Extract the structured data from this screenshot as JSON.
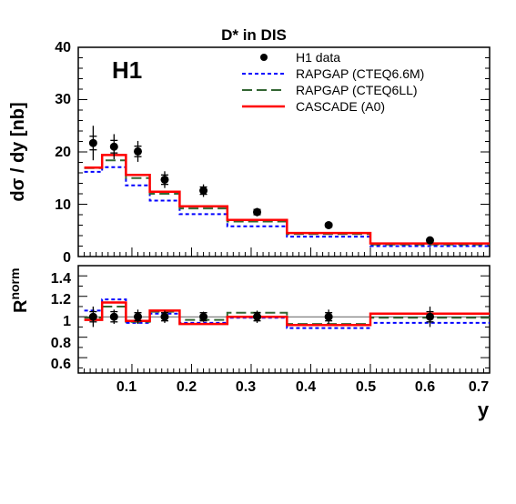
{
  "chart_data": [
    {
      "type": "line",
      "title": "D* in DIS",
      "ylabel": "dσ / dy [nb]",
      "xlabel": "y",
      "logo": "H1",
      "xlim": [
        0.01,
        0.7
      ],
      "ylim": [
        0,
        40
      ],
      "xticks": [
        "0.1",
        "0.2",
        "0.3",
        "0.4",
        "0.5",
        "0.6",
        "0.7"
      ],
      "yticks": [
        "0",
        "10",
        "20",
        "30",
        "40"
      ],
      "grid": false,
      "legend_position": "top-right",
      "bin_edges": [
        0.02,
        0.05,
        0.09,
        0.13,
        0.18,
        0.26,
        0.36,
        0.5,
        0.7
      ],
      "series": [
        {
          "name": "H1 data",
          "style": "markers",
          "color": "#000000",
          "x": [
            0.035,
            0.07,
            0.11,
            0.155,
            0.22,
            0.31,
            0.43,
            0.6
          ],
          "y": [
            21.7,
            21.0,
            20.1,
            14.7,
            12.6,
            8.5,
            6.0,
            3.1
          ],
          "err_stat": [
            1.3,
            1.2,
            1.0,
            0.9,
            0.7,
            0.5,
            0.35,
            0.25
          ],
          "err_tot": [
            3.3,
            2.4,
            2.0,
            1.6,
            1.2,
            0.8,
            0.55,
            0.5
          ]
        },
        {
          "name": "RAPGAP (CTEQ6.6M)",
          "style": "dotted",
          "color": "#0000ff",
          "values": [
            16.2,
            17.1,
            13.6,
            10.7,
            8.1,
            5.8,
            3.8,
            2.0
          ]
        },
        {
          "name": "RAPGAP (CTEQ6LL)",
          "style": "dashed",
          "color": "#336633",
          "values": [
            16.9,
            18.4,
            15.0,
            12.0,
            9.2,
            6.7,
            4.3,
            2.3
          ]
        },
        {
          "name": "CASCADE (A0)",
          "style": "solid",
          "color": "#ff0000",
          "values": [
            17.0,
            19.4,
            15.6,
            12.4,
            9.6,
            7.0,
            4.5,
            2.5
          ]
        }
      ]
    },
    {
      "type": "line",
      "ylabel": "R",
      "ylabel_sup": "norm",
      "xlabel": "y",
      "xlim": [
        0.01,
        0.7
      ],
      "ylim": [
        0.45,
        1.5
      ],
      "yticks": [
        "0.6",
        "0.8",
        "1",
        "1.2",
        "1.4"
      ],
      "xticks": [
        "0.1",
        "0.2",
        "0.3",
        "0.4",
        "0.5",
        "0.6",
        "0.7"
      ],
      "grid": false,
      "bin_edges": [
        0.02,
        0.05,
        0.09,
        0.13,
        0.18,
        0.26,
        0.36,
        0.5,
        0.7
      ],
      "series": [
        {
          "name": "H1 data",
          "style": "markers",
          "color": "#000000",
          "x": [
            0.035,
            0.07,
            0.11,
            0.155,
            0.22,
            0.31,
            0.43,
            0.6
          ],
          "y": [
            1.0,
            1.0,
            1.0,
            1.0,
            1.0,
            1.0,
            1.0,
            1.0
          ],
          "err_stat": [
            0.05,
            0.05,
            0.04,
            0.04,
            0.04,
            0.04,
            0.04,
            0.05
          ],
          "err_tot": [
            0.1,
            0.07,
            0.07,
            0.06,
            0.05,
            0.06,
            0.07,
            0.1
          ]
        },
        {
          "name": "RAPGAP (CTEQ6.6M)",
          "style": "dotted",
          "color": "#0000ff",
          "values": [
            1.06,
            1.17,
            0.94,
            1.03,
            0.94,
            0.99,
            0.89,
            0.94
          ]
        },
        {
          "name": "RAPGAP (CTEQ6LL)",
          "style": "dashed",
          "color": "#336633",
          "values": [
            0.99,
            1.1,
            0.95,
            1.05,
            0.97,
            1.04,
            0.93,
            0.99
          ]
        },
        {
          "name": "CASCADE (A0)",
          "style": "solid",
          "color": "#ff0000",
          "values": [
            0.97,
            1.14,
            0.96,
            1.06,
            0.93,
            1.0,
            0.92,
            1.03
          ]
        }
      ]
    }
  ]
}
